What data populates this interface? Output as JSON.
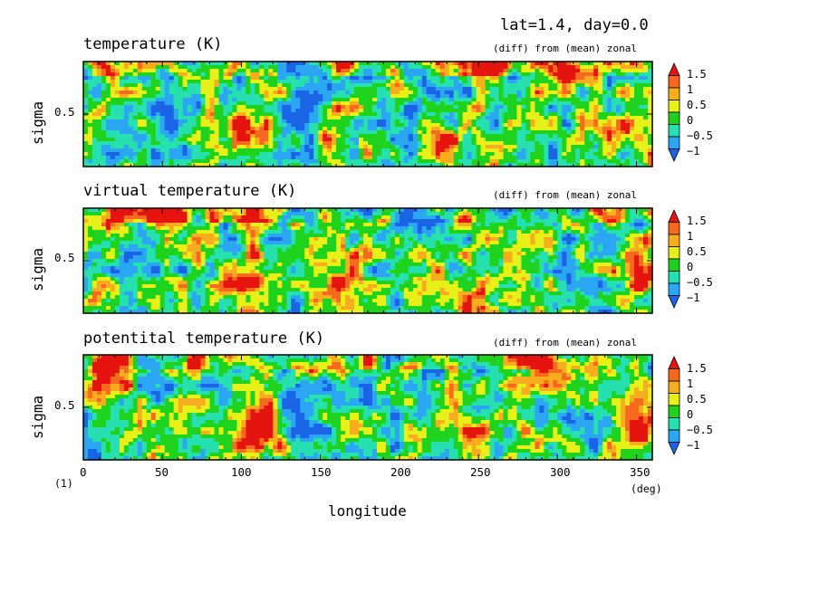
{
  "figure": {
    "title": "lat=1.4, day=0.0",
    "footnote": "(1)",
    "x_axis_label": "longitude",
    "x_unit": "(deg)",
    "y_axis_label": "sigma"
  },
  "colors": {
    "levels": [
      "#1a64e6",
      "#2aa6f2",
      "#26e0b0",
      "#1ed21e",
      "#e8f01a",
      "#f7ad1e",
      "#f56a1e",
      "#e6140f"
    ],
    "frame": "#000000"
  },
  "chart_data": [
    {
      "type": "heatmap",
      "title": "temperature (K)",
      "subtitle": "(diff) from (mean) zonal",
      "xlabel": "longitude",
      "ylabel": "sigma",
      "xlim": [
        0,
        360
      ],
      "x_ticks": [
        0,
        50,
        100,
        150,
        200,
        250,
        300,
        350
      ],
      "y_ticks": [
        0.5
      ],
      "colorbar_ticks": [
        "1.5",
        "1",
        "0.5",
        "0",
        "−0.5",
        "−1"
      ],
      "colorbar_levels": [
        -1.25,
        -1,
        -0.5,
        0,
        0.5,
        1,
        1.5,
        1.75
      ],
      "features": [
        {
          "lon": 105,
          "sigma": 0.35,
          "value": 1.8
        },
        {
          "lon": 300,
          "sigma": 0.9,
          "value": 1.5
        },
        {
          "lon": 160,
          "sigma": 0.4,
          "value": 1.2
        },
        {
          "lon": 230,
          "sigma": 0.25,
          "value": 1.0
        },
        {
          "lon": 348,
          "sigma": 0.4,
          "value": 1.2
        },
        {
          "lon": 60,
          "sigma": 0.45,
          "value": -1.0
        },
        {
          "lon": 140,
          "sigma": 0.5,
          "value": -1.0
        }
      ]
    },
    {
      "type": "heatmap",
      "title": "virtual temperature (K)",
      "subtitle": "(diff) from (mean) zonal",
      "xlabel": "longitude",
      "ylabel": "sigma",
      "xlim": [
        0,
        360
      ],
      "x_ticks": [
        0,
        50,
        100,
        150,
        200,
        250,
        300,
        350
      ],
      "y_ticks": [
        0.5
      ],
      "colorbar_ticks": [
        "1.5",
        "1",
        "0.5",
        "0",
        "−0.5",
        "−1"
      ],
      "colorbar_levels": [
        -1.25,
        -1,
        -0.5,
        0,
        0.5,
        1,
        1.5,
        1.75
      ],
      "features": [
        {
          "lon": 105,
          "sigma": 0.35,
          "value": 1.8
        },
        {
          "lon": 20,
          "sigma": 0.92,
          "value": 1.5
        },
        {
          "lon": 160,
          "sigma": 0.35,
          "value": 1.1
        },
        {
          "lon": 240,
          "sigma": 0.2,
          "value": 1.0
        },
        {
          "lon": 350,
          "sigma": 0.35,
          "value": 1.2
        },
        {
          "lon": 200,
          "sigma": 0.9,
          "value": -1.0
        }
      ]
    },
    {
      "type": "heatmap",
      "title": "potentital temperature (K)",
      "subtitle": "(diff) from (mean) zonal",
      "xlabel": "longitude",
      "ylabel": "sigma",
      "xlim": [
        0,
        360
      ],
      "x_ticks": [
        0,
        50,
        100,
        150,
        200,
        250,
        300,
        350
      ],
      "y_ticks": [
        0.5
      ],
      "colorbar_ticks": [
        "1.5",
        "1",
        "0.5",
        "0",
        "−0.5",
        "−1"
      ],
      "colorbar_levels": [
        -1.25,
        -1,
        -0.5,
        0,
        0.5,
        1,
        1.5,
        1.75
      ],
      "features": [
        {
          "lon": 108,
          "sigma": 0.3,
          "value": 1.9
        },
        {
          "lon": 20,
          "sigma": 0.88,
          "value": 1.6
        },
        {
          "lon": 240,
          "sigma": 0.2,
          "value": 1.1
        },
        {
          "lon": 350,
          "sigma": 0.35,
          "value": 1.3
        },
        {
          "lon": 300,
          "sigma": 0.95,
          "value": 1.5
        },
        {
          "lon": 145,
          "sigma": 0.5,
          "value": -1.0
        }
      ]
    }
  ]
}
